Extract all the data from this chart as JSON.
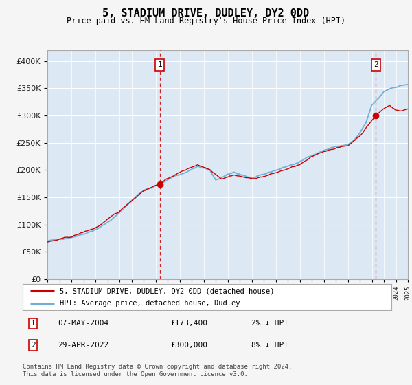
{
  "title": "5, STADIUM DRIVE, DUDLEY, DY2 0DD",
  "subtitle": "Price paid vs. HM Land Registry's House Price Index (HPI)",
  "footer": "Contains HM Land Registry data © Crown copyright and database right 2024.\nThis data is licensed under the Open Government Licence v3.0.",
  "legend_entry1": "5, STADIUM DRIVE, DUDLEY, DY2 0DD (detached house)",
  "legend_entry2": "HPI: Average price, detached house, Dudley",
  "annotation1_date": "07-MAY-2004",
  "annotation1_price": "£173,400",
  "annotation1_hpi": "2% ↓ HPI",
  "annotation1_year": 2004.35,
  "annotation1_value": 173400,
  "annotation2_date": "29-APR-2022",
  "annotation2_price": "£300,000",
  "annotation2_hpi": "8% ↓ HPI",
  "annotation2_year": 2022.33,
  "annotation2_value": 300000,
  "y_min": 0,
  "y_max": 420000,
  "y_ticks": [
    0,
    50000,
    100000,
    150000,
    200000,
    250000,
    300000,
    350000,
    400000
  ],
  "background_color": "#dce9f5",
  "grid_color": "#ffffff",
  "hpi_line_color": "#6baed6",
  "price_line_color": "#cc0000",
  "marker_color": "#cc0000",
  "vline_color": "#cc0000"
}
